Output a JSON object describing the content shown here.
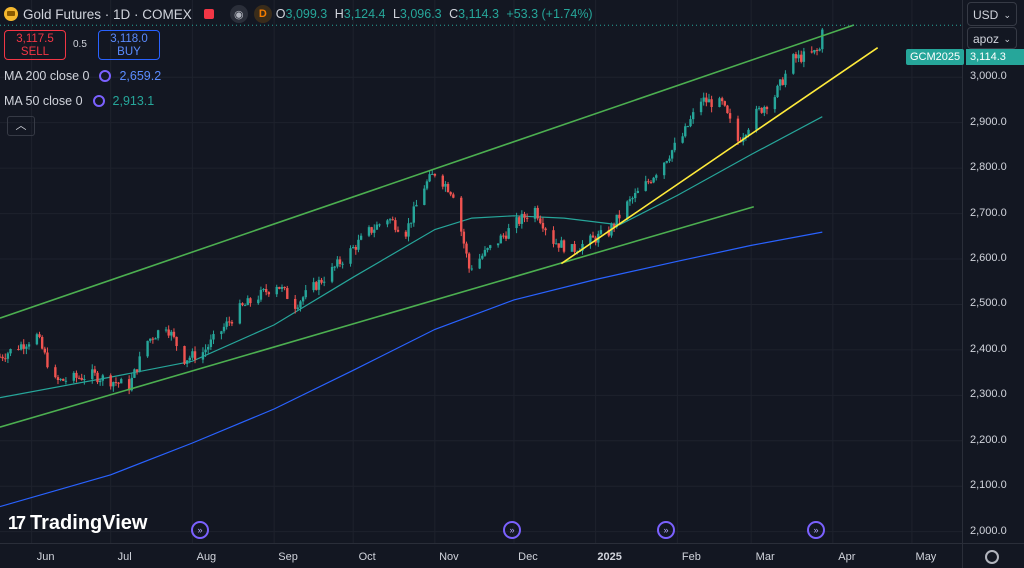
{
  "header": {
    "symbol": "Gold Futures · 1D · COMEX",
    "o_label": "O",
    "o_value": "3,099.3",
    "h_label": "H",
    "h_value": "3,124.4",
    "l_label": "L",
    "l_value": "3,096.3",
    "c_label": "C",
    "c_value": "3,114.3",
    "change": "+53.3 (+1.74%)",
    "delay_badge": "D"
  },
  "trade": {
    "sell_price": "3,117.5",
    "sell_label": "SELL",
    "spread": "0.5",
    "buy_price": "3,118.0",
    "buy_label": "BUY"
  },
  "indicators": [
    {
      "label": "MA 200 close 0",
      "value": "2,659.2",
      "color": "#2962ff"
    },
    {
      "label": "MA 50 close 0",
      "value": "2,913.1",
      "color": "#26a69a"
    }
  ],
  "top_right": {
    "currency": "USD",
    "layout": "apoz"
  },
  "price_tag": {
    "symbol": "GCM2025",
    "price": "3,114.3"
  },
  "brand": "TradingView",
  "colors": {
    "up": "#26a69a",
    "down": "#ef5350",
    "channel": "#4caf50",
    "trend": "#ffeb3b",
    "ma50": "#26a69a",
    "ma200": "#2962ff"
  },
  "chart_data": {
    "type": "candlestick",
    "y_ticks": [
      "3,000.0",
      "2,900.0",
      "2,800.0",
      "2,700.0",
      "2,600.0",
      "2,500.0",
      "2,400.0",
      "2,300.0",
      "2,200.0",
      "2,100.0",
      "2,000.0"
    ],
    "y_range": [
      1975,
      3170
    ],
    "x_ticks": [
      "Jun",
      "Jul",
      "Aug",
      "Sep",
      "Oct",
      "Nov",
      "Dec",
      "2025",
      "Feb",
      "Mar",
      "Apr",
      "May"
    ],
    "x_range": [
      "2024-05-20",
      "2025-05-20"
    ],
    "closes": [
      {
        "date": "2024-05-20",
        "close": 2385
      },
      {
        "date": "2024-06-03",
        "close": 2430
      },
      {
        "date": "2024-06-10",
        "close": 2330
      },
      {
        "date": "2024-06-24",
        "close": 2345
      },
      {
        "date": "2024-07-08",
        "close": 2320
      },
      {
        "date": "2024-07-15",
        "close": 2420
      },
      {
        "date": "2024-07-22",
        "close": 2455
      },
      {
        "date": "2024-07-29",
        "close": 2380
      },
      {
        "date": "2024-08-05",
        "close": 2395
      },
      {
        "date": "2024-08-19",
        "close": 2490
      },
      {
        "date": "2024-09-02",
        "close": 2545
      },
      {
        "date": "2024-09-09",
        "close": 2500
      },
      {
        "date": "2024-09-23",
        "close": 2575
      },
      {
        "date": "2024-10-07",
        "close": 2660
      },
      {
        "date": "2024-10-14",
        "close": 2690
      },
      {
        "date": "2024-10-21",
        "close": 2660
      },
      {
        "date": "2024-10-28",
        "close": 2760
      },
      {
        "date": "2024-11-01",
        "close": 2790
      },
      {
        "date": "2024-11-08",
        "close": 2745
      },
      {
        "date": "2024-11-14",
        "close": 2580
      },
      {
        "date": "2024-11-25",
        "close": 2640
      },
      {
        "date": "2024-12-02",
        "close": 2680
      },
      {
        "date": "2024-12-09",
        "close": 2710
      },
      {
        "date": "2024-12-16",
        "close": 2640
      },
      {
        "date": "2024-12-23",
        "close": 2620
      },
      {
        "date": "2025-01-06",
        "close": 2660
      },
      {
        "date": "2025-01-13",
        "close": 2720
      },
      {
        "date": "2025-01-21",
        "close": 2770
      },
      {
        "date": "2025-02-03",
        "close": 2870
      },
      {
        "date": "2025-02-10",
        "close": 2950
      },
      {
        "date": "2025-02-18",
        "close": 2940
      },
      {
        "date": "2025-02-24",
        "close": 2860
      },
      {
        "date": "2025-03-03",
        "close": 2920
      },
      {
        "date": "2025-03-10",
        "close": 2960
      },
      {
        "date": "2025-03-17",
        "close": 3040
      },
      {
        "date": "2025-03-24",
        "close": 3050
      },
      {
        "date": "2025-03-27",
        "close": 3060
      },
      {
        "date": "2025-03-28",
        "close": 3114.3
      }
    ],
    "ma50": [
      {
        "date": "2024-05-20",
        "value": 2295
      },
      {
        "date": "2024-07-01",
        "value": 2340
      },
      {
        "date": "2024-08-01",
        "value": 2375
      },
      {
        "date": "2024-09-01",
        "value": 2455
      },
      {
        "date": "2024-10-01",
        "value": 2560
      },
      {
        "date": "2024-11-01",
        "value": 2665
      },
      {
        "date": "2024-11-15",
        "value": 2690
      },
      {
        "date": "2024-12-01",
        "value": 2695
      },
      {
        "date": "2024-12-20",
        "value": 2690
      },
      {
        "date": "2025-01-10",
        "value": 2675
      },
      {
        "date": "2025-02-01",
        "value": 2740
      },
      {
        "date": "2025-03-01",
        "value": 2830
      },
      {
        "date": "2025-03-28",
        "value": 2913.1
      }
    ],
    "ma200": [
      {
        "date": "2024-05-20",
        "value": 2055
      },
      {
        "date": "2024-07-01",
        "value": 2125
      },
      {
        "date": "2024-08-01",
        "value": 2195
      },
      {
        "date": "2024-09-01",
        "value": 2270
      },
      {
        "date": "2024-10-01",
        "value": 2355
      },
      {
        "date": "2024-11-01",
        "value": 2445
      },
      {
        "date": "2024-12-01",
        "value": 2510
      },
      {
        "date": "2025-01-01",
        "value": 2555
      },
      {
        "date": "2025-02-01",
        "value": 2595
      },
      {
        "date": "2025-03-01",
        "value": 2630
      },
      {
        "date": "2025-03-28",
        "value": 2659.2
      }
    ],
    "trendlines": [
      {
        "name": "channel-upper",
        "color": "#4caf50",
        "from": {
          "date": "2024-05-20",
          "value": 2470
        },
        "to": {
          "date": "2025-04-09",
          "value": 3115
        }
      },
      {
        "name": "channel-lower",
        "color": "#4caf50",
        "from": {
          "date": "2024-05-20",
          "value": 2230
        },
        "to": {
          "date": "2025-03-02",
          "value": 2715
        }
      },
      {
        "name": "support",
        "color": "#ffeb3b",
        "from": {
          "date": "2024-12-19",
          "value": 2590
        },
        "to": {
          "date": "2025-04-18",
          "value": 3065
        }
      }
    ],
    "current_price": 3114.3,
    "grid": true
  }
}
